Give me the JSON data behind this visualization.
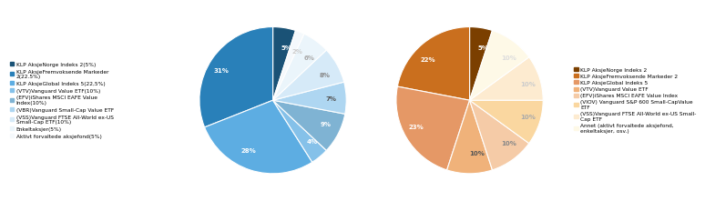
{
  "left_pie": {
    "values": [
      5,
      31,
      28,
      4,
      9,
      7,
      8,
      6,
      2
    ],
    "labels": [
      "5%",
      "31%",
      "28%",
      "4%",
      "9%",
      "7%",
      "8%",
      "6%",
      "2%"
    ],
    "colors": [
      "#1a5276",
      "#2980b9",
      "#5dade2",
      "#85c1e9",
      "#7fb3d3",
      "#aed6f1",
      "#d6eaf8",
      "#ebf5fb",
      "#f5f9fc"
    ],
    "startangle": 72,
    "legend_labels": [
      "KLP AksjeNorge Indeks 2(5%)",
      "KLP AksjeFremvoksende Markeder\n2(22.5%)",
      "KLP AksjeGlobal Indeks 5(22,5%)",
      "(VTV)Vanguard Value ETF(10%)",
      "(EFV)iShares MSCI EAFE Value\nIndex(10%)",
      "(VBR)Vanguard Small-Cap Value ETF",
      "(VSS)Vanguard FTSE All-World ex-US\nSmall-Cap ETF(10%)",
      "Enkeltaksjer(5%)",
      "Aktivt forvaltede aksjefond(5%)"
    ],
    "legend_colors": [
      "#1a5276",
      "#2980b9",
      "#5dade2",
      "#85c1e9",
      "#7fb3d3",
      "#aed6f1",
      "#d6eaf8",
      "#ebf5fb",
      "#f5f9fc"
    ]
  },
  "right_pie": {
    "values": [
      5,
      22,
      23,
      10,
      10,
      10,
      10,
      10
    ],
    "labels": [
      "5%",
      "22%",
      "23%",
      "10%",
      "10%",
      "10%",
      "10%",
      "10%"
    ],
    "colors": [
      "#7b3f00",
      "#ca6f1e",
      "#e59866",
      "#f0b27a",
      "#f5cba7",
      "#fad7a0",
      "#fdebd0",
      "#fef9e7"
    ],
    "startangle": 72,
    "legend_labels": [
      "KLP AksjeNorge Indeks 2",
      "KLP AksjeFremvoksende Markeder 2",
      "KLP AksjeGlobal Indeks 5",
      "(VTV)Vanguard Value ETF",
      "(EFV)iShares MSCI EAFE Value Index",
      "(VIOV) Vanguard S&P 600 Small-CapValue\nETF",
      "(VSS)Vanguard FTSE All-World ex-US Small-\nCap ETF",
      "Annet (aktivt forvaltede aksjefond,\nenkeltaksjer, osv.)"
    ],
    "legend_colors": [
      "#7b3f00",
      "#ca6f1e",
      "#e59866",
      "#f0b27a",
      "#f5cba7",
      "#fad7a0",
      "#fdebd0",
      "#fef9e7"
    ]
  }
}
